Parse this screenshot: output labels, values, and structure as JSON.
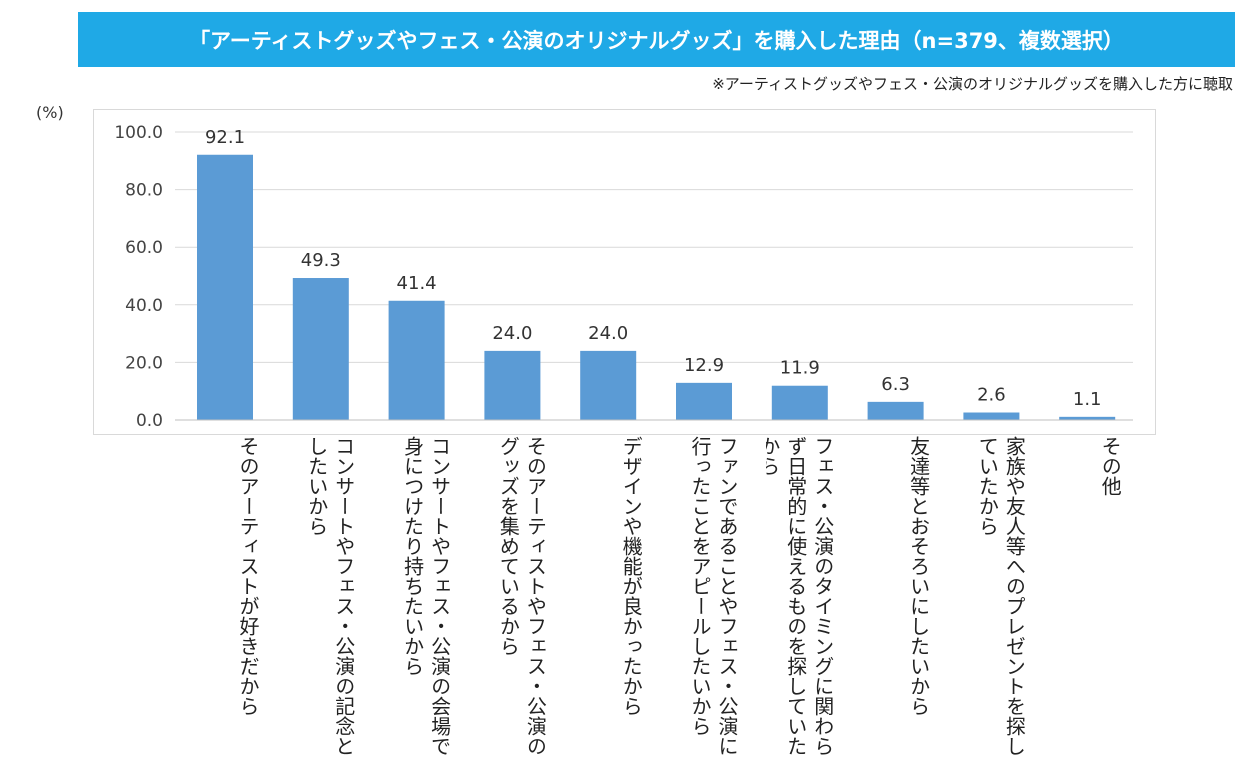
{
  "banner": {
    "title": "「アーティストグッズやフェス・公演のオリジナルグッズ」を購入した理由（n=379、複数選択）"
  },
  "note": "※アーティストグッズやフェス・公演のオリジナルグッズを購入した方に聴取",
  "chart_data": {
    "type": "bar",
    "title": "「アーティストグッズやフェス・公演のオリジナルグッズ」を購入した理由（n=379、複数選択）",
    "ylabel": "(%)",
    "ylim": [
      0,
      100
    ],
    "yticks": [
      "0.0",
      "20.0",
      "40.0",
      "60.0",
      "80.0",
      "100.0"
    ],
    "grid": true,
    "bar_color": "#5b9bd5",
    "categories": [
      "そのアーティストが好きだから",
      "コンサートやフェス・公演の記念としたいから",
      "コンサートやフェス・公演の会場で身につけたり持ちたいから",
      "そのアーティストやフェス・公演のグッズを集めているから",
      "デザインや機能が良かったから",
      "ファンであることやフェス・公演に行ったことをアピールしたいから",
      "フェス・公演のタイミングに関わらず日常的に使えるものを探していたから",
      "友達等とおそろいにしたいから",
      "家族や友人等へのプレゼントを探していたから",
      "その他"
    ],
    "values": [
      92.1,
      49.3,
      41.4,
      24.0,
      24.0,
      12.9,
      11.9,
      6.3,
      2.6,
      1.1
    ],
    "value_labels": [
      "92.1",
      "49.3",
      "41.4",
      "24.0",
      "24.0",
      "12.9",
      "11.9",
      "6.3",
      "2.6",
      "1.1"
    ]
  }
}
